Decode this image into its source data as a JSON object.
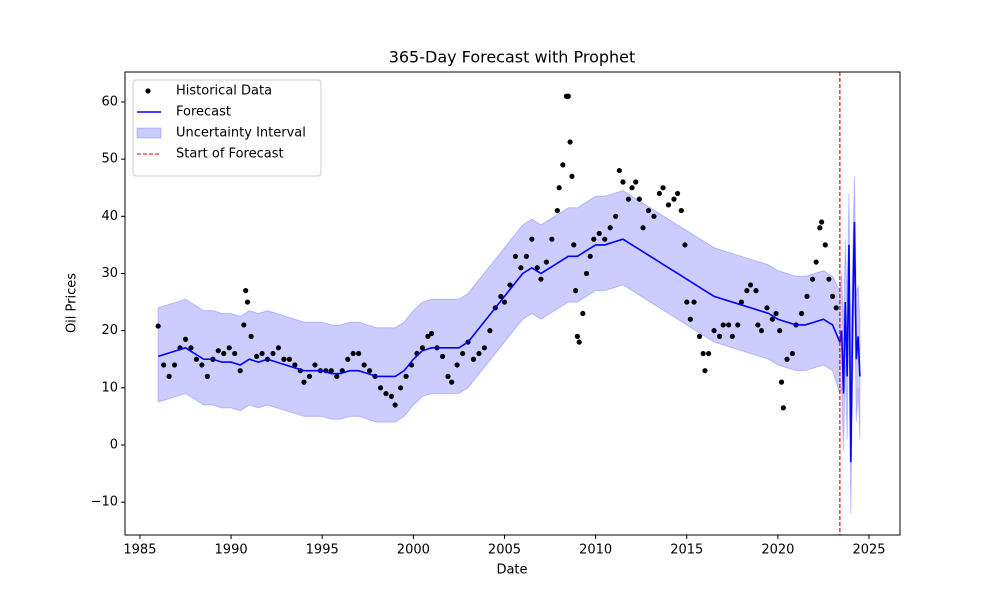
{
  "chart_data": {
    "type": "line",
    "title": "365-Day Forecast with Prophet",
    "xlabel": "Date",
    "ylabel": "Oil Prices",
    "xlim": [
      1984.18,
      2026.7
    ],
    "ylim": [
      -15.74,
      65.24
    ],
    "xticks": [
      1985,
      1990,
      1995,
      2000,
      2005,
      2010,
      2015,
      2020,
      2025
    ],
    "yticks": [
      {
        "value": -10,
        "label": "−10"
      },
      0,
      10,
      20,
      30,
      40,
      50,
      60
    ],
    "legend": "upper left",
    "series": [
      {
        "name": "Uncertainty Interval",
        "kind": "band",
        "color": "#0000ff",
        "x": [
          1986,
          1986.5,
          1987,
          1987.5,
          1988,
          1988.5,
          1989,
          1989.5,
          1990,
          1990.5,
          1991,
          1991.5,
          1992,
          1992.5,
          1993,
          1993.5,
          1994,
          1994.5,
          1995,
          1995.5,
          1996,
          1996.5,
          1997,
          1997.5,
          1998,
          1998.5,
          1999,
          1999.5,
          2000,
          2000.5,
          2001,
          2001.5,
          2002,
          2002.5,
          2003,
          2003.5,
          2004,
          2004.5,
          2005,
          2005.5,
          2006,
          2006.5,
          2007,
          2007.5,
          2008,
          2008.5,
          2009,
          2009.5,
          2010,
          2010.5,
          2011,
          2011.5,
          2012,
          2012.5,
          2013,
          2013.5,
          2014,
          2014.5,
          2015,
          2015.5,
          2016,
          2016.5,
          2017,
          2017.5,
          2018,
          2018.5,
          2019,
          2019.5,
          2020,
          2020.5,
          2021,
          2021.5,
          2022,
          2022.5,
          2023,
          2023.4,
          2023.5,
          2023.6,
          2023.7,
          2023.8,
          2023.9,
          2024,
          2024.1,
          2024.2,
          2024.3,
          2024.4,
          2024.5
        ],
        "lower": [
          7.5,
          8,
          8.5,
          9,
          8,
          7,
          7,
          6.5,
          6.5,
          6,
          7,
          6.5,
          7,
          6.5,
          6,
          5.5,
          5,
          5,
          5,
          4.5,
          4.5,
          5,
          5,
          4.5,
          4,
          4,
          4,
          5,
          7,
          8.5,
          9,
          9,
          9,
          9,
          10,
          12,
          14,
          16,
          18,
          20,
          22,
          23,
          22,
          23,
          24,
          25,
          25,
          26,
          27,
          27,
          27.5,
          28,
          27,
          26,
          25,
          24,
          23,
          22,
          21,
          20,
          19,
          18,
          17.5,
          17,
          16.5,
          16,
          15.5,
          15,
          14,
          13.5,
          13,
          13,
          13.5,
          14,
          13,
          9,
          10,
          -1,
          14,
          1,
          25,
          -12,
          11,
          30,
          4,
          10,
          1
        ],
        "upper": [
          24,
          24.5,
          25,
          25.5,
          24.5,
          23.5,
          23.5,
          23,
          23,
          22.5,
          23.5,
          23,
          23.5,
          23,
          22.5,
          22,
          21.5,
          21.5,
          21.5,
          21,
          21,
          21.5,
          21.5,
          21,
          20.5,
          20.5,
          20.5,
          21.5,
          23.5,
          25,
          25.5,
          25.5,
          25.5,
          25.5,
          26.5,
          28.5,
          30.5,
          32.5,
          34.5,
          36.5,
          38.5,
          39.5,
          38.5,
          39.5,
          40.5,
          41.5,
          41.5,
          42.5,
          43.5,
          43.5,
          44,
          44.5,
          43.5,
          42.5,
          41.5,
          40.5,
          39.5,
          38.5,
          37.5,
          36.5,
          35.5,
          34.5,
          34,
          33.5,
          33,
          32.5,
          32,
          31.5,
          30.5,
          30,
          29.5,
          29.5,
          30,
          30.5,
          29.5,
          27,
          30,
          20,
          36,
          25,
          44,
          12,
          33,
          47,
          26,
          28,
          22
        ]
      },
      {
        "name": "Historical Data",
        "kind": "scatter",
        "color": "#000000",
        "x": [
          1986,
          1986.3,
          1986.6,
          1986.9,
          1987.2,
          1987.5,
          1987.8,
          1988.1,
          1988.4,
          1988.7,
          1989,
          1989.3,
          1989.6,
          1989.9,
          1990.2,
          1990.5,
          1990.7,
          1990.8,
          1990.9,
          1991.1,
          1991.4,
          1991.7,
          1992,
          1992.3,
          1992.6,
          1992.9,
          1993.2,
          1993.5,
          1993.8,
          1994,
          1994.3,
          1994.6,
          1994.9,
          1995.2,
          1995.5,
          1995.8,
          1996.1,
          1996.4,
          1996.7,
          1997,
          1997.3,
          1997.6,
          1997.9,
          1998.2,
          1998.5,
          1998.8,
          1999,
          1999.3,
          1999.6,
          1999.9,
          2000.2,
          2000.5,
          2000.8,
          2001,
          2001.3,
          2001.6,
          2001.9,
          2002.1,
          2002.4,
          2002.7,
          2003,
          2003.3,
          2003.6,
          2003.9,
          2004.2,
          2004.5,
          2004.8,
          2005,
          2005.3,
          2005.6,
          2005.9,
          2006.2,
          2006.5,
          2006.8,
          2007,
          2007.3,
          2007.6,
          2007.9,
          2008,
          2008.2,
          2008.4,
          2008.5,
          2008.6,
          2008.7,
          2008.8,
          2008.9,
          2009,
          2009.1,
          2009.3,
          2009.5,
          2009.7,
          2009.9,
          2010.2,
          2010.5,
          2010.8,
          2011.1,
          2011.3,
          2011.5,
          2011.8,
          2012,
          2012.2,
          2012.4,
          2012.6,
          2012.9,
          2013.2,
          2013.5,
          2013.7,
          2014,
          2014.3,
          2014.5,
          2014.7,
          2014.9,
          2015,
          2015.2,
          2015.4,
          2015.7,
          2015.9,
          2016,
          2016.2,
          2016.5,
          2016.8,
          2017,
          2017.3,
          2017.5,
          2017.8,
          2018,
          2018.3,
          2018.5,
          2018.8,
          2018.9,
          2019.1,
          2019.4,
          2019.7,
          2019.9,
          2020.1,
          2020.2,
          2020.3,
          2020.5,
          2020.8,
          2021,
          2021.3,
          2021.6,
          2021.9,
          2022.1,
          2022.3,
          2022.4,
          2022.6,
          2022.8,
          2023,
          2023.2
        ],
        "values": [
          20.8,
          14,
          12,
          14,
          17,
          18.5,
          17,
          15,
          14,
          12,
          15,
          16.5,
          16,
          17,
          16,
          13,
          21,
          27,
          25,
          19,
          15.5,
          16,
          15,
          16,
          17,
          15,
          15,
          14,
          13,
          11,
          12,
          14,
          13,
          13,
          13,
          12,
          13,
          15,
          16,
          16,
          14,
          13,
          12,
          10,
          9,
          8.5,
          7,
          10,
          12,
          14,
          16,
          17,
          19,
          19.5,
          17,
          15.5,
          12,
          11,
          14,
          16,
          18,
          15,
          16,
          17,
          20,
          24,
          26,
          25,
          28,
          33,
          31,
          33,
          36,
          31,
          29,
          32,
          36,
          41,
          45,
          49,
          61,
          61,
          53,
          47,
          35,
          27,
          19,
          18,
          23,
          30,
          33,
          36,
          37,
          36,
          38,
          40,
          48,
          46,
          43,
          45,
          46,
          43,
          38,
          41,
          40,
          44,
          45,
          42,
          43,
          44,
          41,
          35,
          25,
          22,
          25,
          19,
          16,
          13,
          16,
          20,
          19,
          21,
          21,
          19,
          21,
          25,
          27,
          28,
          27,
          21,
          20,
          24,
          22,
          23,
          20,
          11,
          6.5,
          15,
          16,
          21,
          23,
          26,
          29,
          32,
          38,
          39,
          35,
          29,
          26,
          24
        ]
      },
      {
        "name": "Forecast",
        "kind": "line",
        "color": "#0000ff",
        "x": [
          1986,
          1986.5,
          1987,
          1987.5,
          1988,
          1988.5,
          1989,
          1989.5,
          1990,
          1990.5,
          1991,
          1991.5,
          1992,
          1992.5,
          1993,
          1993.5,
          1994,
          1994.5,
          1995,
          1995.5,
          1996,
          1996.5,
          1997,
          1997.5,
          1998,
          1998.5,
          1999,
          1999.5,
          2000,
          2000.5,
          2001,
          2001.5,
          2002,
          2002.5,
          2003,
          2003.5,
          2004,
          2004.5,
          2005,
          2005.5,
          2006,
          2006.5,
          2007,
          2007.5,
          2008,
          2008.5,
          2009,
          2009.5,
          2010,
          2010.5,
          2011,
          2011.5,
          2012,
          2012.5,
          2013,
          2013.5,
          2014,
          2014.5,
          2015,
          2015.5,
          2016,
          2016.5,
          2017,
          2017.5,
          2018,
          2018.5,
          2019,
          2019.5,
          2020,
          2020.5,
          2021,
          2021.5,
          2022,
          2022.5,
          2023,
          2023.4,
          2023.5,
          2023.6,
          2023.7,
          2023.8,
          2023.9,
          2024,
          2024.1,
          2024.2,
          2024.3,
          2024.4,
          2024.5
        ],
        "values": [
          15.5,
          16,
          16.5,
          17,
          16,
          15,
          15,
          14.5,
          14.5,
          14,
          15,
          14.5,
          15,
          14.5,
          14,
          13.5,
          13,
          13,
          13,
          12.5,
          12.5,
          13,
          13,
          12.5,
          12,
          12,
          12,
          13,
          15,
          16.5,
          17,
          17,
          17,
          17,
          18,
          20,
          22,
          24,
          26,
          28,
          30,
          31,
          30,
          31,
          32,
          33,
          33,
          34,
          35,
          35,
          35.5,
          36,
          35,
          34,
          33,
          32,
          31,
          30,
          29,
          28,
          27,
          26,
          25.5,
          25,
          24.5,
          24,
          23.5,
          23,
          22,
          21.5,
          21,
          21,
          21.5,
          22,
          21,
          18,
          20,
          9,
          25,
          12,
          35,
          -3,
          22,
          39,
          15,
          19,
          12
        ]
      },
      {
        "name": "Start of Forecast",
        "kind": "vline",
        "color": "#ff0000",
        "x": 2023.4
      }
    ]
  }
}
